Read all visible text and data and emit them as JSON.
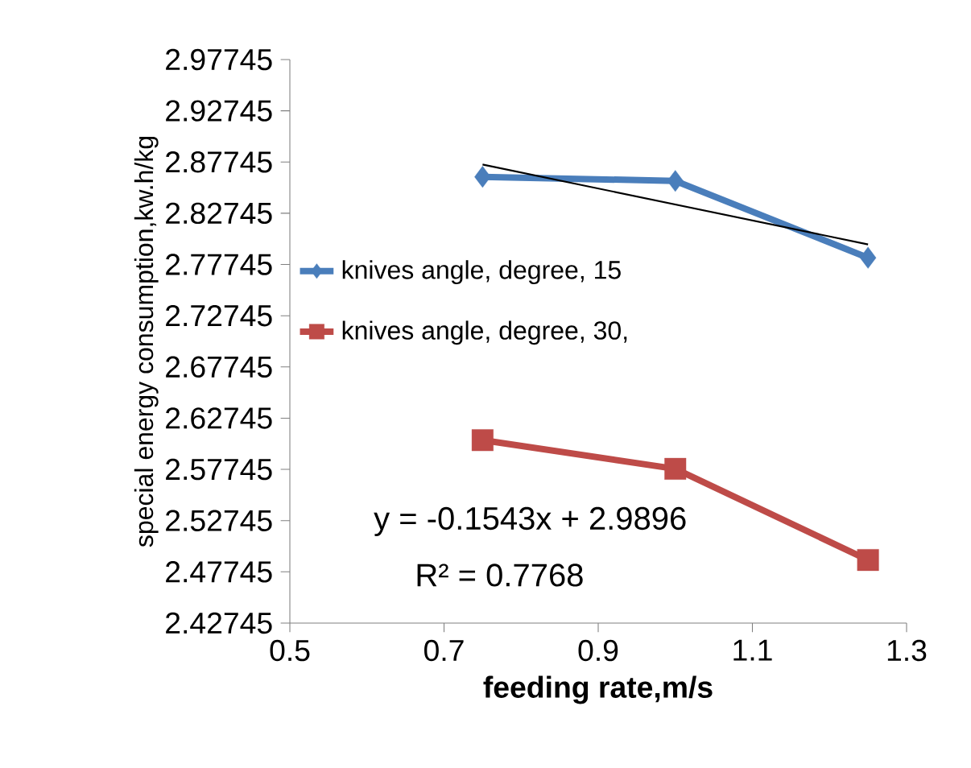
{
  "chart_data": {
    "type": "line",
    "xlabel": "feeding rate,m/s",
    "ylabel": "special energy consumption,kw.h/kg",
    "xlim": [
      0.5,
      1.3
    ],
    "xticks": [
      0.5,
      0.7,
      0.9,
      1.1,
      1.3
    ],
    "ylim": [
      2.42745,
      2.97745
    ],
    "yticks": [
      2.42745,
      2.47745,
      2.52745,
      2.57745,
      2.62745,
      2.67745,
      2.72745,
      2.77745,
      2.82745,
      2.87745,
      2.92745,
      2.97745
    ],
    "x": [
      0.75,
      1.0,
      1.25
    ],
    "series": [
      {
        "name": "knives angle, degree, 15",
        "color": "#4a7ebb",
        "marker": "diamond",
        "values": [
          2.863,
          2.859,
          2.784
        ]
      },
      {
        "name": "knives angle, degree, 30,",
        "color": "#be4b48",
        "marker": "square",
        "values": [
          2.606,
          2.578,
          2.489
        ]
      },
      {
        "type": "line",
        "color": "#000000",
        "marker": "none",
        "x": [
          0.75,
          1.25
        ],
        "values": [
          2.875,
          2.797
        ]
      }
    ],
    "legend": "left",
    "grid": false,
    "annotations": [
      "y = -0.1543x + 2.9896",
      "R² = 0.7768"
    ]
  }
}
